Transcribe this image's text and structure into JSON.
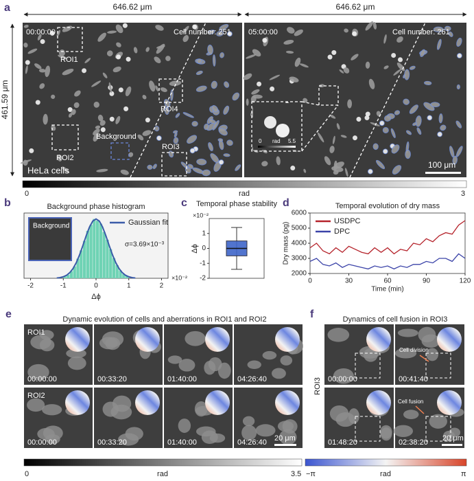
{
  "panel_a": {
    "label": "a",
    "left_width": "646.62 μm",
    "right_width": "646.62 μm",
    "height": "461.59 μm",
    "left_image": {
      "time": "00:00:00",
      "cell_number": "Cell number: 251",
      "roi1": "ROI1",
      "roi2": "ROI2",
      "roi3": "ROI3",
      "roi4": "ROI4",
      "background": "Background",
      "cell_type": "HeLa cells"
    },
    "right_image": {
      "time": "05:00:00",
      "cell_number": "Cell number: 261",
      "inset_min": "0",
      "inset_unit": "rad",
      "inset_max": "5.5",
      "scale_bar": "100 μm"
    },
    "colorbar": {
      "min": "0",
      "unit": "rad",
      "max": "3"
    }
  },
  "panel_labels": {
    "b": "b",
    "c": "c",
    "d": "d"
  },
  "chart_data": [
    {
      "type": "histogram",
      "title": "Background phase histogram",
      "x_label": "Δϕ",
      "x_scale": "×10⁻²",
      "bins": [
        -1.0,
        -0.9,
        -0.8,
        -0.7,
        -0.6,
        -0.5,
        -0.4,
        -0.3,
        -0.2,
        -0.1,
        0,
        0.1,
        0.2,
        0.3,
        0.4,
        0.5,
        0.6,
        0.7,
        0.8,
        0.9,
        1.0
      ],
      "values": [
        3,
        6,
        12,
        20,
        33,
        47,
        63,
        80,
        90,
        100,
        97,
        92,
        78,
        65,
        49,
        34,
        22,
        13,
        7,
        4
      ],
      "color": "#6fd3b4",
      "xlim": [
        -2.2,
        2.2
      ],
      "xticks": [
        -2,
        -1,
        0,
        1,
        2
      ],
      "legend": "upper right",
      "series": [
        {
          "name": "Gaussian fit",
          "color": "#3a5ba8",
          "x": [
            -1.2,
            -1.1,
            -1.0,
            -0.9,
            -0.8,
            -0.7,
            -0.6,
            -0.5,
            -0.4,
            -0.3,
            -0.2,
            -0.1,
            0,
            0.1,
            0.2,
            0.3,
            0.4,
            0.5,
            0.6,
            0.7,
            0.8,
            0.9,
            1.0,
            1.1,
            1.2
          ],
          "values": [
            0.5,
            1.2,
            2.6,
            5.1,
            9.6,
            16.6,
            26.7,
            39.9,
            55.5,
            71.9,
            86.3,
            96.4,
            100,
            96.4,
            86.3,
            71.9,
            55.5,
            39.9,
            26.7,
            16.6,
            9.6,
            5.1,
            2.6,
            1.2,
            0.5
          ]
        }
      ],
      "inset_label": "Background",
      "annotation": "σ=3.69×10⁻³"
    },
    {
      "type": "box",
      "title": "Temporal phase stability",
      "y_label": "Δϕ",
      "y_scale": "×10⁻²",
      "ylim": [
        -2,
        2
      ],
      "yticks": [
        -2,
        -1,
        0,
        1
      ],
      "color": "#3f66c9",
      "box": {
        "whisker_low": -1.4,
        "q1": -0.5,
        "median": 0,
        "q3": 0.5,
        "whisker_high": 1.4
      }
    },
    {
      "type": "line",
      "title": "Temporal evolution of dry mass",
      "x_label": "Time (min)",
      "y_label": "Dry mass (pg)",
      "x": [
        0,
        5,
        10,
        15,
        20,
        25,
        30,
        35,
        40,
        45,
        50,
        55,
        60,
        65,
        70,
        75,
        80,
        85,
        90,
        95,
        100,
        105,
        110,
        115,
        120
      ],
      "xlim": [
        0,
        120
      ],
      "xticks": [
        0,
        30,
        60,
        90,
        120
      ],
      "ylim": [
        2000,
        6000
      ],
      "yticks": [
        2000,
        3000,
        4000,
        5000,
        6000
      ],
      "legend": "upper left",
      "series": [
        {
          "name": "USDPC",
          "color": "#b5232b",
          "values": [
            3700,
            4000,
            3500,
            3300,
            3700,
            3400,
            3800,
            3600,
            3400,
            3300,
            3700,
            3400,
            3700,
            3300,
            3600,
            3500,
            4000,
            3900,
            4300,
            4100,
            4500,
            4700,
            4600,
            5200,
            5500
          ]
        },
        {
          "name": "DPC",
          "color": "#3b43a8",
          "values": [
            2800,
            3000,
            2600,
            2500,
            2700,
            2400,
            2600,
            2500,
            2400,
            2300,
            2500,
            2400,
            2500,
            2300,
            2500,
            2400,
            2600,
            2600,
            2800,
            2700,
            3000,
            3000,
            2800,
            3300,
            3000
          ]
        }
      ]
    }
  ],
  "panel_e": {
    "label": "e",
    "title": "Dynamic evolution of cells and aberrations in ROI1 and ROI2",
    "rows": [
      {
        "name": "ROI1",
        "times": [
          "00:00:00",
          "00:33:20",
          "01:40:00",
          "04:26:40"
        ]
      },
      {
        "name": "ROI2",
        "times": [
          "00:00:00",
          "00:33:20",
          "01:40:00",
          "04:26:40"
        ]
      }
    ],
    "scale_bar": "20 μm",
    "colorbar": {
      "min": "0",
      "unit": "rad",
      "max": "3.5"
    }
  },
  "panel_f": {
    "label": "f",
    "title": "Dynamics of cell fusion in ROI3",
    "side_label": "ROI3",
    "times": [
      "00:00:00",
      "00:41:40",
      "01:48:20",
      "02:38:20"
    ],
    "annotations": [
      "Cell division",
      "Cell fusion"
    ],
    "scale_bar": "20 μm",
    "colorbar": {
      "min": "−π",
      "unit": "rad",
      "max": "π"
    }
  }
}
